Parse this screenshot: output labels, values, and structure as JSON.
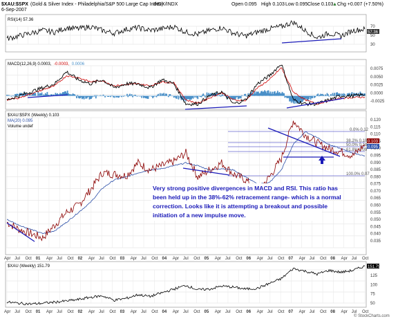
{
  "header": {
    "symbol": "$XAU:$SPX",
    "description": "(Gold & Silver Index - Philadelphia/S&P 500 Large Cap Index)",
    "exchange": "INDX/INDX",
    "date": "6-Sep-2007",
    "open": "Open 0.095",
    "high": "High 0.103",
    "low": "Low 0.095",
    "close": "Close 0.103",
    "change": "Chg +0.007 (+7.50%)",
    "up_arrow": "▲",
    "copyright": "© StockCharts.com"
  },
  "rsi": {
    "label": "RSI(14) 57.36",
    "value_box": "57.36",
    "ticks": [
      "70",
      "50",
      "30"
    ]
  },
  "macd": {
    "label_prefix": "MACD(12,26,9) 0.0003,",
    "label_signal": "-0.0003,",
    "label_hist": "0.0006",
    "ticks": [
      "0.0075",
      "0.0050",
      "0.0025",
      "0.0000",
      "-0.0025"
    ]
  },
  "price": {
    "label": "$XAU:$SPX (Weekly) 0.103",
    "ma_label": "MA(20) 0.095",
    "volume_label": "Volume undef",
    "value_box_close": "0.103",
    "value_box_ma": "0.095",
    "ticks": [
      "0.120",
      "0.115",
      "0.110",
      "0.105",
      "0.100",
      "0.095",
      "0.090",
      "0.085",
      "0.080",
      "0.075",
      "0.070",
      "0.065",
      "0.060",
      "0.055",
      "0.050",
      "0.045",
      "0.040",
      "0.035"
    ],
    "fib_labels": [
      "0.0% 0.12",
      "38.2% 0.10",
      "50.0% 0.10",
      "61.8% 0.09",
      "100.0% 0.07"
    ],
    "annotation": [
      "Very strong positive divergences in MACD and RSI. This ratio has",
      "been held up in the 38%-62% retracement range- which is a normal",
      "correction. Looks like it is attempting a breakout and possible",
      "initiation of a new impulse move."
    ]
  },
  "xau": {
    "label": "$XAU (Weekly) 151.79",
    "value_box": "151.79",
    "ticks": [
      "125",
      "100",
      "75",
      "50"
    ]
  },
  "x_axis_labels": [
    "Apr",
    "Jul",
    "Oct",
    "01",
    "Apr",
    "Jul",
    "Oct",
    "02",
    "Apr",
    "Jul",
    "Oct",
    "03",
    "Apr",
    "Jul",
    "Oct",
    "04",
    "Apr",
    "Jul",
    "Oct",
    "05",
    "Apr",
    "Jul",
    "Oct",
    "06",
    "Apr",
    "Jul",
    "Oct",
    "07",
    "Apr",
    "Jul",
    "Oct",
    "08",
    "Apr",
    "Jul",
    "Oct"
  ],
  "colors": {
    "price": "#8b0000",
    "ma": "#2b4fa8",
    "macd_line": "#000000",
    "signal_line": "#cc0000",
    "histogram": "#4a90c8",
    "trendline": "#1a1ab8",
    "rsi_fill": "#2e7d32",
    "annotation_text": "#1a1ab8"
  },
  "chart_data": [
    {
      "type": "line",
      "title": "$XAU:$SPX (Weekly) 0.103",
      "x": [
        "2000-04",
        "2000-07",
        "2000-10",
        "2001-01",
        "2001-04",
        "2001-07",
        "2001-10",
        "2002-01",
        "2002-04",
        "2002-07",
        "2002-10",
        "2003-01",
        "2003-04",
        "2003-07",
        "2003-10",
        "2004-01",
        "2004-04",
        "2004-07",
        "2004-10",
        "2005-01",
        "2005-04",
        "2005-07",
        "2005-10",
        "2006-01",
        "2006-04",
        "2006-07",
        "2006-10",
        "2007-01",
        "2007-04",
        "2007-07",
        "2007-09"
      ],
      "series": [
        {
          "name": "$XAU:$SPX",
          "values": [
            0.048,
            0.043,
            0.04,
            0.037,
            0.046,
            0.055,
            0.06,
            0.071,
            0.083,
            0.082,
            0.081,
            0.09,
            0.085,
            0.088,
            0.091,
            0.097,
            0.08,
            0.085,
            0.09,
            0.082,
            0.078,
            0.07,
            0.08,
            0.093,
            0.12,
            0.11,
            0.104,
            0.1,
            0.098,
            0.095,
            0.103
          ]
        },
        {
          "name": "MA(20)",
          "values": [
            0.05,
            0.046,
            0.043,
            0.04,
            0.042,
            0.048,
            0.055,
            0.062,
            0.072,
            0.078,
            0.08,
            0.083,
            0.085,
            0.086,
            0.088,
            0.09,
            0.088,
            0.085,
            0.086,
            0.085,
            0.08,
            0.075,
            0.076,
            0.085,
            0.103,
            0.112,
            0.108,
            0.103,
            0.1,
            0.097,
            0.095
          ]
        }
      ],
      "ylim": [
        0.03,
        0.122
      ]
    },
    {
      "type": "line",
      "title": "RSI(14) 57.36",
      "series": [
        {
          "name": "RSI(14)",
          "values": [
            40,
            45,
            50,
            55,
            52,
            60,
            58,
            62,
            55,
            50,
            57,
            60,
            55,
            58,
            62,
            52,
            48,
            55,
            60,
            50,
            45,
            52,
            58,
            62,
            70,
            55,
            42,
            50,
            45,
            55,
            57.36
          ]
        }
      ],
      "ylim": [
        20,
        80
      ]
    },
    {
      "type": "line",
      "title": "MACD(12,26,9) 0.0003, -0.0003, 0.0006",
      "series": [
        {
          "name": "MACD",
          "values": [
            -0.001,
            0.0,
            0.001,
            0.002,
            0.003,
            0.006,
            0.004,
            0.003,
            0.004,
            0.002,
            0.003,
            0.003,
            0.002,
            0.004,
            0.003,
            -0.002,
            -0.002,
            0.0,
            0.001,
            -0.002,
            -0.001,
            0.003,
            0.005,
            0.008,
            -0.001,
            -0.002,
            -0.002,
            -0.001,
            0.0,
            0.0,
            0.0003
          ]
        },
        {
          "name": "Signal",
          "values": [
            -0.001,
            -0.0005,
            0.0005,
            0.0015,
            0.0025,
            0.005,
            0.0045,
            0.0035,
            0.0038,
            0.0025,
            0.0028,
            0.003,
            0.0025,
            0.0035,
            0.0032,
            -0.001,
            -0.0018,
            -0.0005,
            0.0008,
            -0.001,
            -0.0012,
            0.002,
            0.004,
            0.007,
            0.001,
            -0.001,
            -0.002,
            -0.0012,
            -0.0006,
            -0.0004,
            -0.0003
          ]
        }
      ],
      "ylim": [
        -0.003,
        0.008
      ]
    },
    {
      "type": "line",
      "title": "$XAU (Weekly) 151.79",
      "series": [
        {
          "name": "$XAU",
          "values": [
            55,
            52,
            50,
            52,
            55,
            58,
            62,
            68,
            72,
            60,
            65,
            75,
            70,
            80,
            90,
            100,
            88,
            90,
            98,
            95,
            90,
            92,
            105,
            118,
            145,
            138,
            130,
            140,
            135,
            140,
            151.79
          ]
        }
      ],
      "ylim": [
        45,
        160
      ]
    }
  ]
}
